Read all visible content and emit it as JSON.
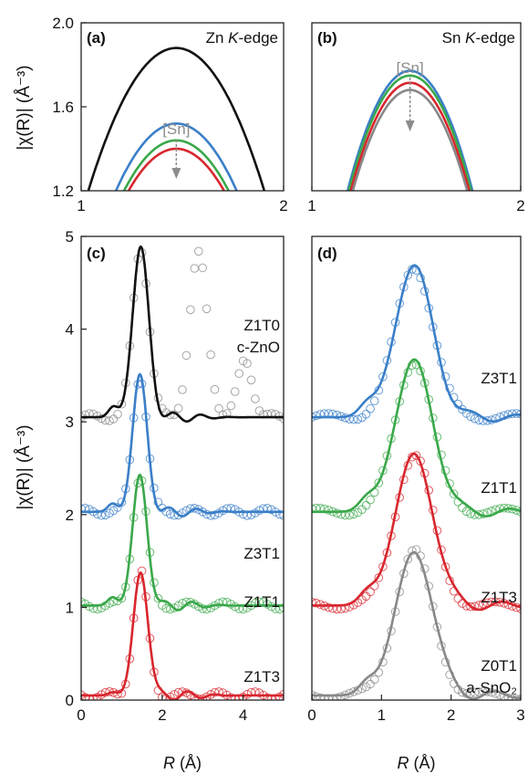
{
  "colors": {
    "black": "#111111",
    "blue": "#3a7fc8",
    "green": "#3aa84a",
    "red": "#d8262e",
    "gray": "#888888",
    "arrow": "#8c8c8c"
  },
  "chart_data": [
    {
      "id": "a",
      "type": "line",
      "panel_label": "(a)",
      "edge_prefix": "Zn ",
      "edge_italic": "K",
      "edge_suffix": "-edge",
      "xlim": [
        1,
        2
      ],
      "ylim": [
        1.2,
        2.0
      ],
      "xticks": [
        "1",
        "2"
      ],
      "yticks": [
        "1.2",
        "1.6",
        "2.0"
      ],
      "ylabel": "|χ(R)| (Å⁻³)",
      "annotation": "[Sn]",
      "peak_x": 1.47,
      "series": [
        {
          "color": "black",
          "peak": 1.88,
          "curvature": 3.6
        },
        {
          "color": "blue",
          "peak": 1.52,
          "curvature": 3.6
        },
        {
          "color": "green",
          "peak": 1.44,
          "curvature": 3.6
        },
        {
          "color": "red",
          "peak": 1.4,
          "curvature": 3.6
        }
      ]
    },
    {
      "id": "b",
      "type": "line",
      "panel_label": "(b)",
      "edge_prefix": "Sn ",
      "edge_italic": "K",
      "edge_suffix": "-edge",
      "xlim": [
        1,
        2
      ],
      "ylim": [
        1.2,
        1.9
      ],
      "xticks": [
        "1",
        "2"
      ],
      "yticks": [],
      "annotation": "[Sn]",
      "peak_x": 1.47,
      "series": [
        {
          "color": "blue",
          "peak": 1.7,
          "curvature": 5.6
        },
        {
          "color": "green",
          "peak": 1.68,
          "curvature": 5.6
        },
        {
          "color": "red",
          "peak": 1.65,
          "curvature": 5.6
        },
        {
          "color": "gray",
          "peak": 1.62,
          "curvature": 5.6
        }
      ]
    },
    {
      "id": "c",
      "type": "line",
      "panel_label": "(c)",
      "xlim": [
        0,
        5
      ],
      "ylim": [
        0,
        5
      ],
      "xticks": [
        "0",
        "2",
        "4"
      ],
      "yticks": [
        "0",
        "1",
        "2",
        "3",
        "4",
        "5"
      ],
      "ylabel": "|χ(R)| (Å⁻³)",
      "xlabel_italic": "R",
      "xlabel_suffix": " (Å)",
      "series": [
        {
          "name": "Z1T0",
          "name2": "c-ZnO",
          "color": "black",
          "offset": 3.05,
          "amp": 1.83,
          "center": 1.47,
          "width": 0.2,
          "shoulder": 0.32,
          "open": {
            "color": "gray",
            "x0": 0,
            "x1": 5,
            "step": 0.1,
            "peaks": [
              [
                1.47,
                1.83,
                0.2
              ],
              [
                2.9,
                1.75,
                0.22
              ],
              [
                4.05,
                0.62,
                0.18
              ]
            ]
          }
        },
        {
          "name": "Z3T1",
          "color": "blue",
          "offset": 2.03,
          "amp": 1.47,
          "center": 1.45,
          "width": 0.18,
          "shoulder": 0.25,
          "open": {
            "color": "blue",
            "x0": 0,
            "x1": 5,
            "step": 0.1,
            "peaks": [
              [
                1.45,
                1.47,
                0.18
              ]
            ]
          }
        },
        {
          "name": "Z1T1",
          "color": "green",
          "offset": 1.02,
          "amp": 1.4,
          "center": 1.45,
          "width": 0.18,
          "shoulder": 0.25,
          "open": {
            "color": "green",
            "x0": 0,
            "x1": 5,
            "step": 0.1,
            "peaks": [
              [
                1.45,
                1.4,
                0.18
              ]
            ]
          }
        },
        {
          "name": "Z1T3",
          "color": "red",
          "offset": 0.05,
          "amp": 1.33,
          "center": 1.47,
          "width": 0.18,
          "shoulder": 0.1,
          "open": {
            "color": "red",
            "x0": 0,
            "x1": 5,
            "step": 0.1,
            "peaks": [
              [
                1.47,
                1.33,
                0.18
              ]
            ]
          }
        }
      ]
    },
    {
      "id": "d",
      "type": "line",
      "panel_label": "(d)",
      "xlim": [
        0,
        3
      ],
      "ylim": [
        0,
        5
      ],
      "xticks": [
        "0",
        "1",
        "2",
        "3"
      ],
      "yticks": [],
      "xlabel_italic": "R",
      "xlabel_suffix": " (Å)",
      "series": [
        {
          "name": "Z3T1",
          "color": "blue",
          "offset": 3.05,
          "amp": 1.63,
          "center": 1.47,
          "width": 0.27,
          "shoulder": 0.35,
          "open": {
            "color": "blue",
            "x0": 0,
            "x1": 3,
            "step": 0.06,
            "peaks": [
              [
                1.47,
                1.63,
                0.27
              ]
            ]
          }
        },
        {
          "name": "Z1T1",
          "color": "green",
          "offset": 2.03,
          "amp": 1.63,
          "center": 1.47,
          "width": 0.27,
          "shoulder": 0.35,
          "open": {
            "color": "green",
            "x0": 0,
            "x1": 3,
            "step": 0.06,
            "peaks": [
              [
                1.47,
                1.63,
                0.27
              ]
            ]
          }
        },
        {
          "name": "Z1T3",
          "color": "red",
          "offset": 1.02,
          "amp": 1.63,
          "center": 1.47,
          "width": 0.27,
          "shoulder": 0.35,
          "open": {
            "color": "red",
            "x0": 0,
            "x1": 3,
            "step": 0.06,
            "peaks": [
              [
                1.47,
                1.63,
                0.27
              ]
            ]
          }
        },
        {
          "name": "Z0T1",
          "name2": "a-SnO₂",
          "color": "gray",
          "offset": 0.05,
          "amp": 1.55,
          "center": 1.47,
          "width": 0.27,
          "shoulder": 0.35,
          "open": {
            "color": "gray",
            "x0": 0,
            "x1": 3,
            "step": 0.06,
            "peaks": [
              [
                1.47,
                1.55,
                0.27
              ]
            ]
          }
        }
      ]
    }
  ]
}
